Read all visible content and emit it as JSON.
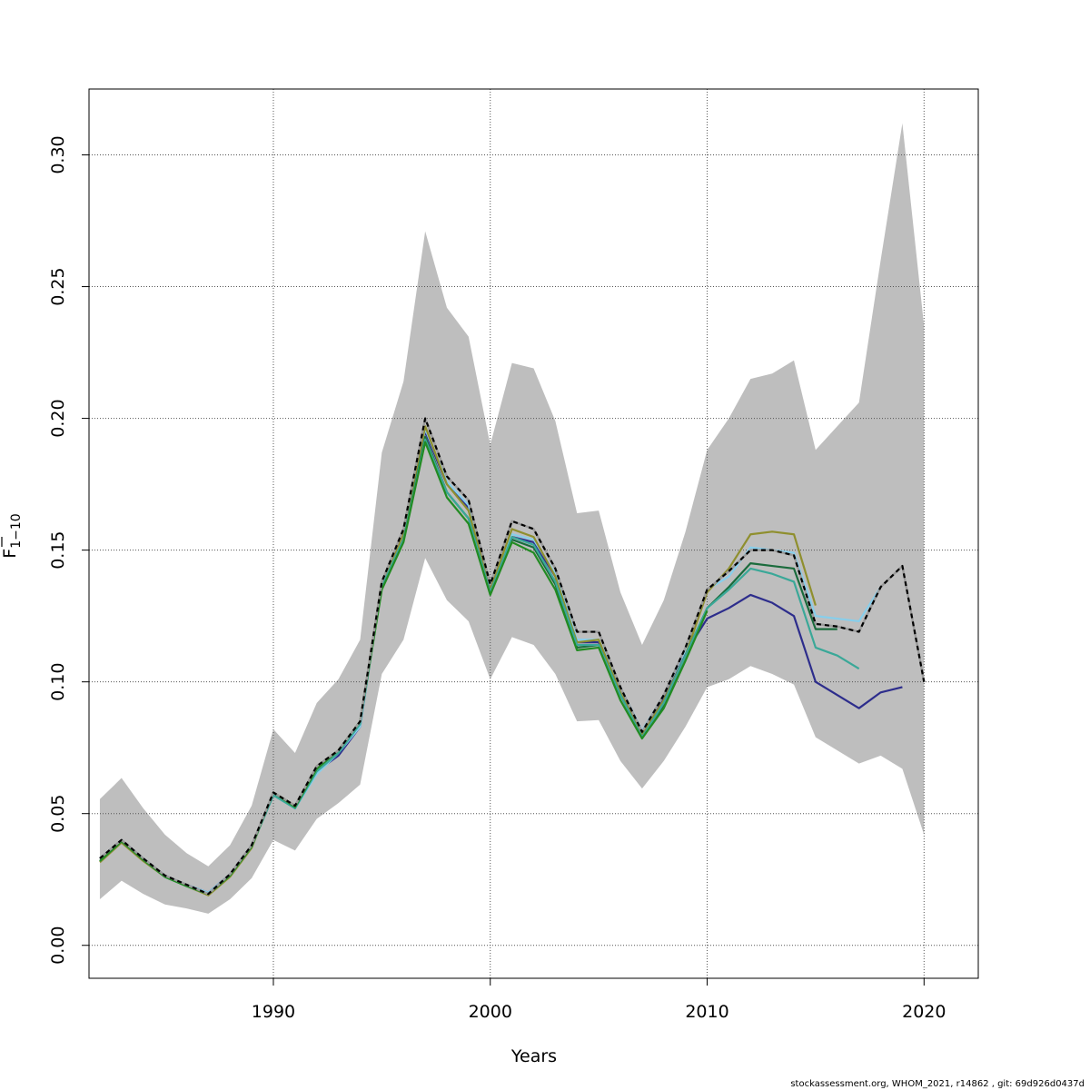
{
  "chart_data": {
    "type": "line",
    "xlabel": "Years",
    "ylabel_main": "F",
    "ylabel_sub": "1−10",
    "xlim": [
      1981.5,
      2022.5
    ],
    "ylim": [
      -0.0125,
      0.325
    ],
    "x_ticks": [
      1990,
      2000,
      2010,
      2020
    ],
    "x_tick_labels": [
      "1990",
      "2000",
      "2010",
      "2020"
    ],
    "y_ticks": [
      0.0,
      0.05,
      0.1,
      0.15,
      0.2,
      0.25,
      0.3
    ],
    "y_tick_labels": [
      "0.00",
      "0.05",
      "0.10",
      "0.15",
      "0.20",
      "0.25",
      "0.30"
    ],
    "grid": true,
    "band": {
      "color": "#bebebe",
      "x": [
        1982,
        1983,
        1984,
        1985,
        1986,
        1987,
        1988,
        1989,
        1990,
        1991,
        1992,
        1993,
        1994,
        1995,
        1996,
        1997,
        1998,
        1999,
        2000,
        2001,
        2002,
        2003,
        2004,
        2005,
        2006,
        2007,
        2008,
        2009,
        2010,
        2011,
        2012,
        2013,
        2014,
        2015,
        2016,
        2017,
        2018,
        2019,
        2020
      ],
      "upper": [
        0.0555,
        0.0635,
        0.052,
        0.042,
        0.035,
        0.03,
        0.038,
        0.053,
        0.082,
        0.073,
        0.092,
        0.101,
        0.116,
        0.187,
        0.214,
        0.271,
        0.242,
        0.231,
        0.19,
        0.221,
        0.219,
        0.199,
        0.164,
        0.165,
        0.134,
        0.114,
        0.131,
        0.157,
        0.188,
        0.2,
        0.215,
        0.217,
        0.222,
        0.188,
        0.197,
        0.206,
        0.26,
        0.312,
        0.235
      ],
      "lower": [
        0.0175,
        0.0245,
        0.0195,
        0.0155,
        0.014,
        0.012,
        0.0175,
        0.0255,
        0.04,
        0.036,
        0.048,
        0.054,
        0.061,
        0.103,
        0.116,
        0.147,
        0.131,
        0.123,
        0.101,
        0.117,
        0.114,
        0.103,
        0.085,
        0.0855,
        0.07,
        0.0595,
        0.07,
        0.083,
        0.098,
        0.101,
        0.106,
        0.103,
        0.099,
        0.079,
        0.074,
        0.069,
        0.072,
        0.067,
        0.042
      ]
    },
    "series": [
      {
        "color": "#2d2d8c",
        "dashed": false,
        "x": [
          1982,
          1983,
          1984,
          1985,
          1986,
          1987,
          1988,
          1989,
          1990,
          1991,
          1992,
          1993,
          1994,
          1995,
          1996,
          1997,
          1998,
          1999,
          2000,
          2001,
          2002,
          2003,
          2004,
          2005,
          2006,
          2007,
          2008,
          2009,
          2010,
          2011,
          2012,
          2013,
          2014,
          2015,
          2016,
          2017,
          2018,
          2019
        ],
        "values": [
          0.033,
          0.04,
          0.033,
          0.0265,
          0.023,
          0.02,
          0.027,
          0.038,
          0.057,
          0.053,
          0.066,
          0.072,
          0.083,
          0.137,
          0.155,
          0.195,
          0.175,
          0.166,
          0.136,
          0.155,
          0.153,
          0.14,
          0.115,
          0.115,
          0.098,
          0.081,
          0.094,
          0.111,
          0.124,
          0.128,
          0.133,
          0.13,
          0.125,
          0.1,
          0.095,
          0.09,
          0.096,
          0.098
        ]
      },
      {
        "color": "#87ceeb",
        "dashed": false,
        "x": [
          1982,
          1983,
          1984,
          1985,
          1986,
          1987,
          1988,
          1989,
          1990,
          1991,
          1992,
          1993,
          1994,
          1995,
          1996,
          1997,
          1998,
          1999,
          2000,
          2001,
          2002,
          2003,
          2004,
          2005,
          2006,
          2007,
          2008,
          2009,
          2010,
          2011,
          2012,
          2013,
          2014,
          2015,
          2016,
          2017,
          2018
        ],
        "values": [
          0.033,
          0.04,
          0.033,
          0.0265,
          0.023,
          0.02,
          0.027,
          0.038,
          0.057,
          0.052,
          0.065,
          0.073,
          0.083,
          0.137,
          0.155,
          0.196,
          0.176,
          0.167,
          0.137,
          0.156,
          0.154,
          0.141,
          0.116,
          0.116,
          0.098,
          0.0815,
          0.095,
          0.112,
          0.135,
          0.14,
          0.151,
          0.15,
          0.149,
          0.125,
          0.124,
          0.123,
          0.136
        ]
      },
      {
        "color": "#8f8f2e",
        "dashed": false,
        "x": [
          1982,
          1983,
          1984,
          1985,
          1986,
          1987,
          1988,
          1989,
          1990,
          1991,
          1992,
          1993,
          1994,
          1995,
          1996,
          1997,
          1998,
          1999,
          2000,
          2001,
          2002,
          2003,
          2004,
          2005,
          2006,
          2007,
          2008,
          2009,
          2010,
          2011,
          2012,
          2013,
          2014,
          2015
        ],
        "values": [
          0.0315,
          0.039,
          0.032,
          0.026,
          0.0225,
          0.019,
          0.026,
          0.037,
          0.058,
          0.053,
          0.068,
          0.074,
          0.085,
          0.138,
          0.156,
          0.197,
          0.175,
          0.165,
          0.135,
          0.158,
          0.155,
          0.14,
          0.115,
          0.116,
          0.096,
          0.08,
          0.093,
          0.11,
          0.134,
          0.143,
          0.156,
          0.157,
          0.156,
          0.129
        ]
      },
      {
        "color": "#1a6b3c",
        "dashed": false,
        "x": [
          1982,
          1983,
          1984,
          1985,
          1986,
          1987,
          1988,
          1989,
          1990,
          1991,
          1992,
          1993,
          1994,
          1995,
          1996,
          1997,
          1998,
          1999,
          2000,
          2001,
          2002,
          2003,
          2004,
          2005,
          2006,
          2007,
          2008,
          2009,
          2010,
          2011,
          2012,
          2013,
          2014,
          2015,
          2016
        ],
        "values": [
          0.032,
          0.0395,
          0.0325,
          0.026,
          0.0225,
          0.0195,
          0.0265,
          0.0375,
          0.058,
          0.0525,
          0.067,
          0.074,
          0.085,
          0.136,
          0.154,
          0.193,
          0.172,
          0.162,
          0.134,
          0.154,
          0.151,
          0.137,
          0.113,
          0.114,
          0.095,
          0.079,
          0.091,
          0.11,
          0.128,
          0.136,
          0.145,
          0.144,
          0.143,
          0.12,
          0.12
        ]
      },
      {
        "color": "#3aa898",
        "dashed": false,
        "x": [
          1982,
          1983,
          1984,
          1985,
          1986,
          1987,
          1988,
          1989,
          1990,
          1991,
          1992,
          1993,
          1994,
          1995,
          1996,
          1997,
          1998,
          1999,
          2000,
          2001,
          2002,
          2003,
          2004,
          2005,
          2006,
          2007,
          2008,
          2009,
          2010,
          2011,
          2012,
          2013,
          2014,
          2015,
          2016,
          2017
        ],
        "values": [
          0.032,
          0.0395,
          0.0325,
          0.026,
          0.0225,
          0.0195,
          0.0265,
          0.0375,
          0.057,
          0.052,
          0.066,
          0.073,
          0.084,
          0.136,
          0.154,
          0.192,
          0.172,
          0.162,
          0.134,
          0.155,
          0.152,
          0.138,
          0.114,
          0.114,
          0.095,
          0.079,
          0.092,
          0.11,
          0.128,
          0.135,
          0.143,
          0.141,
          0.138,
          0.113,
          0.11,
          0.105
        ]
      },
      {
        "color": "#228b22",
        "dashed": false,
        "x": [
          1982,
          1983,
          1984,
          1985,
          1986,
          1987,
          1988,
          1989,
          1990,
          1991,
          1992,
          1993,
          1994,
          1995,
          1996,
          1997,
          1998,
          1999,
          2000,
          2001,
          2002,
          2003,
          2004,
          2005,
          2006,
          2007,
          2008,
          2009,
          2010
        ],
        "values": [
          0.032,
          0.0395,
          0.0325,
          0.026,
          0.0225,
          0.0195,
          0.0265,
          0.0375,
          0.058,
          0.0525,
          0.067,
          0.074,
          0.085,
          0.135,
          0.153,
          0.191,
          0.17,
          0.16,
          0.133,
          0.153,
          0.149,
          0.135,
          0.112,
          0.113,
          0.093,
          0.0785,
          0.09,
          0.108,
          0.127
        ]
      },
      {
        "color": "#000000",
        "dashed": true,
        "x": [
          1982,
          1983,
          1984,
          1985,
          1986,
          1987,
          1988,
          1989,
          1990,
          1991,
          1992,
          1993,
          1994,
          1995,
          1996,
          1997,
          1998,
          1999,
          2000,
          2001,
          2002,
          2003,
          2004,
          2005,
          2006,
          2007,
          2008,
          2009,
          2010,
          2011,
          2012,
          2013,
          2014,
          2015,
          2016,
          2017,
          2018,
          2019,
          2020
        ],
        "values": [
          0.033,
          0.04,
          0.033,
          0.0265,
          0.023,
          0.0195,
          0.027,
          0.038,
          0.058,
          0.053,
          0.068,
          0.074,
          0.085,
          0.138,
          0.158,
          0.2,
          0.178,
          0.169,
          0.137,
          0.161,
          0.158,
          0.143,
          0.119,
          0.119,
          0.098,
          0.081,
          0.095,
          0.113,
          0.135,
          0.142,
          0.15,
          0.15,
          0.148,
          0.122,
          0.121,
          0.119,
          0.136,
          0.144,
          0.1
        ]
      }
    ]
  },
  "footer": "stockassessment.org, WHOM_2021, r14862 , git: 69d926d0437d"
}
